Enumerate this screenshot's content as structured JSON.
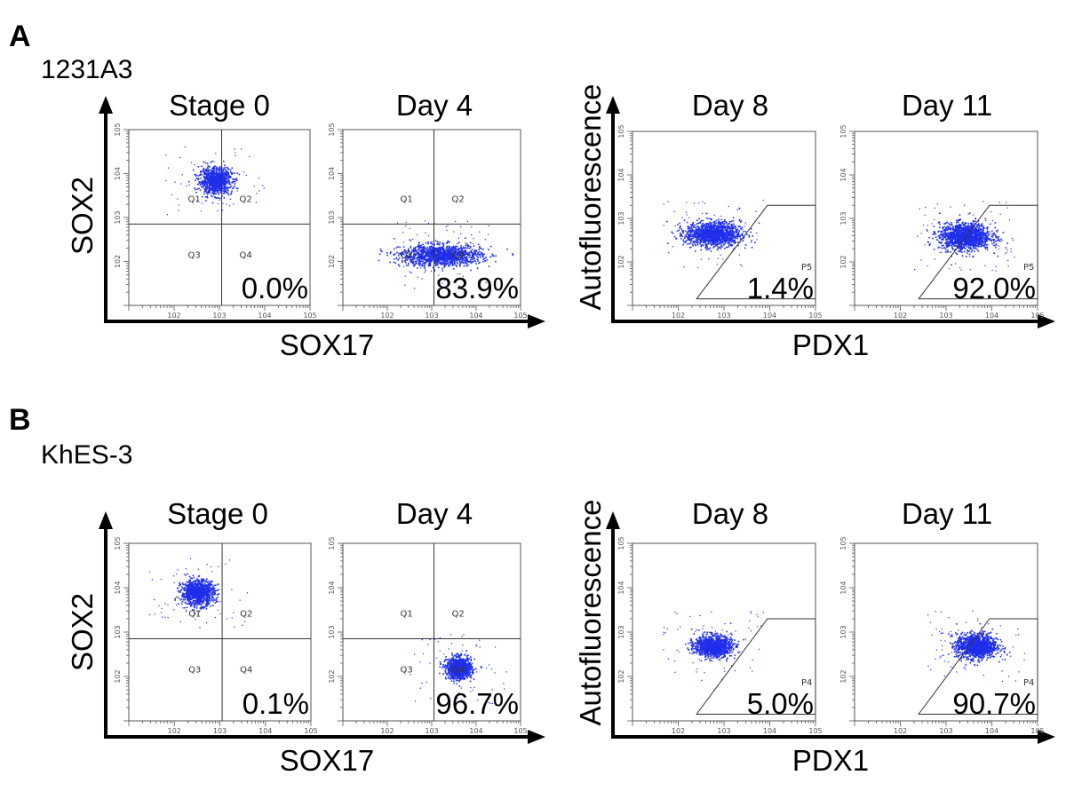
{
  "colors": {
    "dots": "#1f2eea",
    "axes": "#000000",
    "frame": "#555555"
  },
  "panels": [
    {
      "letter": "A",
      "cell_line": "1231A3",
      "left_group": {
        "xlabel": "SOX17",
        "ylabel": "SOX2"
      },
      "right_group": {
        "xlabel": "PDX1",
        "ylabel": "Autofluorescence"
      }
    },
    {
      "letter": "B",
      "cell_line": "KhES-3",
      "left_group": {
        "xlabel": "SOX17",
        "ylabel": "SOX2"
      },
      "right_group": {
        "xlabel": "PDX1",
        "ylabel": "Autofluorescence"
      }
    }
  ],
  "chart_data": [
    {
      "type": "scatter",
      "panel": "A",
      "title": "Stage 0",
      "xlabel": "SOX17",
      "ylabel": "SOX2",
      "axis_scale": "log",
      "xlim": [
        10,
        100000
      ],
      "ylim": [
        10,
        100000
      ],
      "gate": "quadrant",
      "quadrant_labels": [
        "Q1",
        "Q2",
        "Q3",
        "Q4"
      ],
      "percentage": "0.0%",
      "populations": [
        {
          "center_log10": [
            2.9,
            3.85
          ],
          "spread_log10": [
            0.18,
            0.15
          ],
          "n": 900
        }
      ]
    },
    {
      "type": "scatter",
      "panel": "A",
      "title": "Day 4",
      "xlabel": "SOX17",
      "ylabel": "SOX2",
      "axis_scale": "log",
      "xlim": [
        10,
        100000
      ],
      "ylim": [
        10,
        100000
      ],
      "gate": "quadrant",
      "quadrant_labels": [
        "Q1",
        "Q2",
        "Q3",
        "Q4"
      ],
      "percentage": "83.9%",
      "populations": [
        {
          "center_log10": [
            3.2,
            2.15
          ],
          "spread_log10": [
            0.45,
            0.12
          ],
          "n": 1300
        }
      ]
    },
    {
      "type": "scatter",
      "panel": "A",
      "title": "Day 8",
      "xlabel": "PDX1",
      "ylabel": "Autofluorescence",
      "axis_scale": "log",
      "xlim": [
        10,
        100000
      ],
      "ylim": [
        10,
        100000
      ],
      "gate": "polygon",
      "gate_label": "P5",
      "percentage": "1.4%",
      "populations": [
        {
          "center_log10": [
            2.75,
            2.65
          ],
          "spread_log10": [
            0.3,
            0.14
          ],
          "n": 1300
        }
      ]
    },
    {
      "type": "scatter",
      "panel": "A",
      "title": "Day 11",
      "xlabel": "PDX1",
      "ylabel": "Autofluorescence",
      "axis_scale": "log",
      "xlim": [
        10,
        100000
      ],
      "ylim": [
        10,
        100000
      ],
      "gate": "polygon",
      "gate_label": "P5",
      "percentage": "92.0%",
      "populations": [
        {
          "center_log10": [
            3.4,
            2.6
          ],
          "spread_log10": [
            0.28,
            0.15
          ],
          "n": 1400
        }
      ]
    },
    {
      "type": "scatter",
      "panel": "B",
      "title": "Stage 0",
      "xlabel": "SOX17",
      "ylabel": "SOX2",
      "axis_scale": "log",
      "xlim": [
        10,
        100000
      ],
      "ylim": [
        10,
        100000
      ],
      "gate": "quadrant",
      "quadrant_labels": [
        "Q1",
        "Q2",
        "Q3",
        "Q4"
      ],
      "percentage": "0.1%",
      "populations": [
        {
          "center_log10": [
            2.5,
            3.9
          ],
          "spread_log10": [
            0.18,
            0.14
          ],
          "n": 1000
        }
      ]
    },
    {
      "type": "scatter",
      "panel": "B",
      "title": "Day 4",
      "xlabel": "SOX17",
      "ylabel": "SOX2",
      "axis_scale": "log",
      "xlim": [
        10,
        100000
      ],
      "ylim": [
        10,
        100000
      ],
      "gate": "quadrant",
      "quadrant_labels": [
        "Q1",
        "Q2",
        "Q3",
        "Q4"
      ],
      "percentage": "96.7%",
      "populations": [
        {
          "center_log10": [
            3.6,
            2.2
          ],
          "spread_log10": [
            0.14,
            0.12
          ],
          "n": 1000
        }
      ]
    },
    {
      "type": "scatter",
      "panel": "B",
      "title": "Day 8",
      "xlabel": "PDX1",
      "ylabel": "Autofluorescence",
      "axis_scale": "log",
      "xlim": [
        10,
        100000
      ],
      "ylim": [
        10,
        100000
      ],
      "gate": "polygon",
      "gate_label": "P4",
      "percentage": "5.0%",
      "populations": [
        {
          "center_log10": [
            2.75,
            2.7
          ],
          "spread_log10": [
            0.2,
            0.12
          ],
          "n": 1100
        }
      ]
    },
    {
      "type": "scatter",
      "panel": "B",
      "title": "Day 11",
      "xlabel": "PDX1",
      "ylabel": "Autofluorescence",
      "axis_scale": "log",
      "xlim": [
        10,
        100000
      ],
      "ylim": [
        10,
        100000
      ],
      "gate": "polygon",
      "gate_label": "P4",
      "percentage": "90.7%",
      "populations": [
        {
          "center_log10": [
            3.65,
            2.7
          ],
          "spread_log10": [
            0.22,
            0.14
          ],
          "n": 1200
        }
      ]
    }
  ]
}
